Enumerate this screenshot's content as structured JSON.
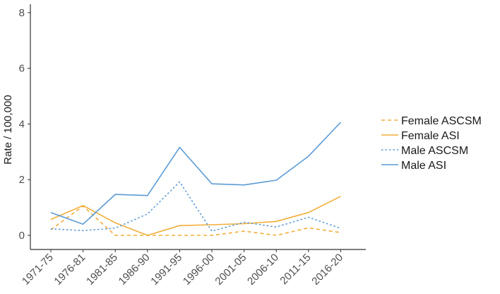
{
  "chart_data": {
    "type": "line",
    "title": "",
    "xlabel": "",
    "ylabel": "Rate / 100,000",
    "categories": [
      "1971-75",
      "1976-81",
      "1981-85",
      "1986-90",
      "1991-95",
      "1996-00",
      "2001-05",
      "2006-10",
      "2011-15",
      "2016-20"
    ],
    "ylim": [
      0,
      8
    ],
    "yticks": [
      "0",
      "2",
      "4",
      "6",
      "8"
    ],
    "grid": false,
    "legend_position": "right",
    "series": [
      {
        "name": "Female ASCSM",
        "color": "#F2AE3A",
        "dash": "dashed",
        "values": [
          0.2,
          1.05,
          0.0,
          0.0,
          0.0,
          0.0,
          0.15,
          0.0,
          0.27,
          0.1
        ]
      },
      {
        "name": "Female ASI",
        "color": "#F2AE3A",
        "dash": "solid",
        "values": [
          0.57,
          1.07,
          0.45,
          0.0,
          0.35,
          0.38,
          0.42,
          0.5,
          0.82,
          1.4
        ]
      },
      {
        "name": "Male ASCSM",
        "color": "#5B9BD5",
        "dash": "dotted",
        "values": [
          0.23,
          0.17,
          0.26,
          0.77,
          1.92,
          0.15,
          0.47,
          0.3,
          0.65,
          0.25
        ]
      },
      {
        "name": "Male ASI",
        "color": "#5B9BD5",
        "dash": "solid",
        "values": [
          0.82,
          0.4,
          1.47,
          1.43,
          3.16,
          1.85,
          1.81,
          1.98,
          2.84,
          4.06
        ]
      }
    ]
  }
}
